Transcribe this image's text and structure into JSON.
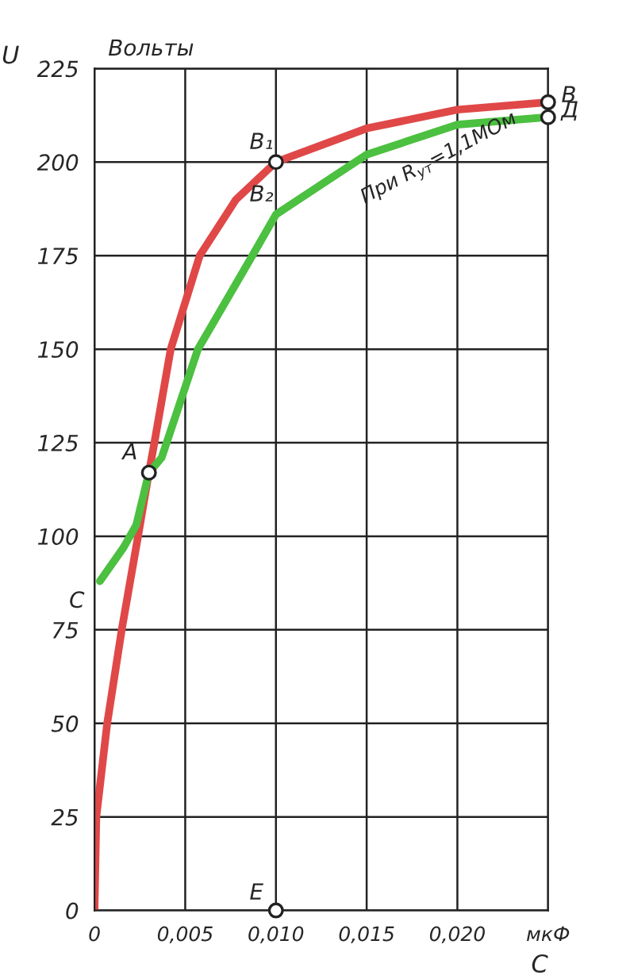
{
  "chart_data": {
    "type": "line",
    "xlabel": "C",
    "ylabel": "U",
    "xlim": [
      0,
      0.025
    ],
    "ylim": [
      0,
      225
    ],
    "xticks": [
      0,
      {
        "value": 0.005,
        "label": "0,005"
      },
      {
        "value": 0.01,
        "label": "0,010"
      },
      {
        "value": 0.015,
        "label": "0,015"
      },
      {
        "value": 0.02,
        "label": "0,020"
      },
      {
        "value": 0.025,
        "label": "мкФ"
      }
    ],
    "yticks": [
      0,
      25,
      50,
      75,
      100,
      125,
      150,
      175,
      200,
      225
    ],
    "grid": true,
    "legend": false,
    "line_style": "solid",
    "series": [
      {
        "color": "#e04848",
        "marker": "none",
        "x": [
          0,
          0.0001,
          0.0007,
          0.0015,
          0.0024,
          0.003,
          0.0033,
          0.0042,
          0.0058,
          0.0078,
          0.01,
          0.015,
          0.02,
          0.025
        ],
        "values": [
          0,
          25,
          50,
          75,
          100,
          117,
          125,
          150,
          175,
          190,
          200,
          209,
          214,
          216
        ]
      },
      {
        "color": "#4cc040",
        "marker": "none",
        "x": [
          0.0003,
          0.0016,
          0.0023,
          0.003,
          0.0037,
          0.0057,
          0.0087,
          0.01,
          0.015,
          0.02,
          0.025
        ],
        "values": [
          88,
          97,
          103,
          117,
          121,
          150,
          175,
          186,
          202,
          210,
          212
        ]
      },
      {
        "type": "scatter",
        "color": "#222222",
        "marker": "circle",
        "x": [
          0.003,
          0.01,
          0.025,
          0.025,
          0.01
        ],
        "values": [
          117,
          200,
          216,
          212,
          0
        ]
      }
    ],
    "annotations": [
      "Вольты",
      {
        "text": "C",
        "x": 0.0003,
        "y": 88
      },
      {
        "text": "A",
        "x": 0.003,
        "y": 117
      },
      {
        "text": "B₁",
        "x": 0.01,
        "y": 200
      },
      {
        "text": "B₂",
        "x": 0.01,
        "y": 186
      },
      {
        "text": "B",
        "x": 0.025,
        "y": 216
      },
      {
        "text": "Д",
        "x": 0.025,
        "y": 212
      },
      {
        "text": "E",
        "x": 0.01,
        "y": 0
      },
      {
        "text": "При R$_{ут}$=1,1МОм",
        "x": 0.015,
        "y": 202
      }
    ]
  }
}
